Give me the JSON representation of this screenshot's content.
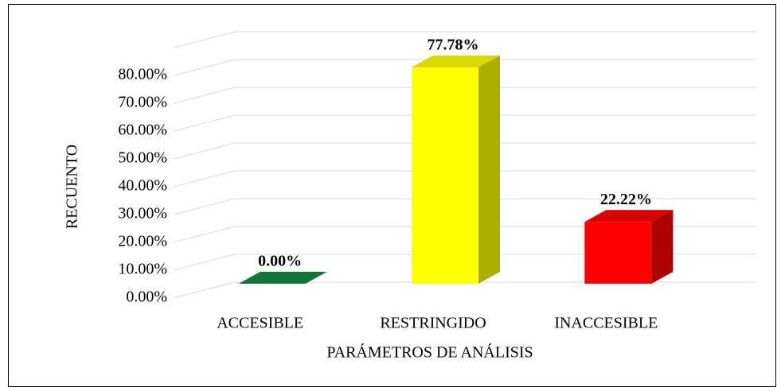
{
  "chart_data": {
    "type": "bar3d",
    "categories": [
      "ACCESIBLE",
      "RESTRINGIDO",
      "INACCESIBLE"
    ],
    "series": [
      {
        "values": [
          0,
          77.78,
          22.22
        ],
        "value_labels": [
          "0.00%",
          "77.78%",
          "22.22%"
        ],
        "colors": [
          "#138a3e",
          "#ffff00",
          "#ff0000"
        ]
      }
    ],
    "y_label": "RECUENTO",
    "x_label": "PARÁMETROS DE ANÁLISIS",
    "ylim": [
      0,
      90
    ],
    "yticks": [
      {
        "value": 0,
        "label": "0.00%"
      },
      {
        "value": 10,
        "label": "10.00%"
      },
      {
        "value": 20,
        "label": "20.00%"
      },
      {
        "value": 30,
        "label": "30.00%"
      },
      {
        "value": 40,
        "label": "40.00%"
      },
      {
        "value": 50,
        "label": "50.00%"
      },
      {
        "value": 60,
        "label": "60.00%"
      },
      {
        "value": 70,
        "label": "70.00%"
      },
      {
        "value": 80,
        "label": "80.00%"
      }
    ],
    "grid": true
  }
}
